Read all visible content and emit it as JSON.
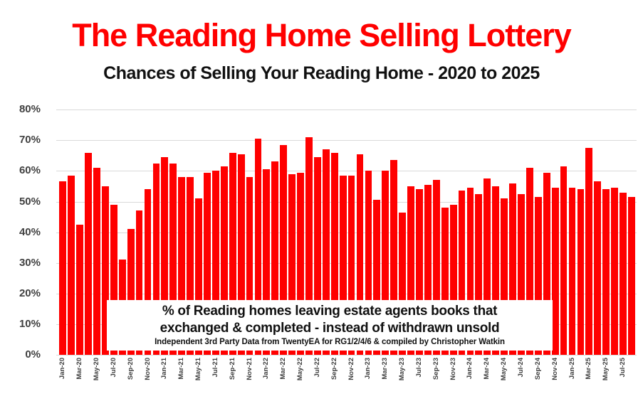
{
  "title": {
    "text": "The Reading Home Selling Lottery",
    "color": "#ff0000"
  },
  "subtitle": {
    "text": "Chances of Selling Your Reading Home - 2020 to 2025"
  },
  "annotation": {
    "line1": "% of Reading homes leaving estate agents books that",
    "line2": "exchanged & completed - instead of withdrawn unsold",
    "line3": "Independent 3rd Party Data from TwentyEA for RG1/2/4/6 & compiled by Christopher Watkin"
  },
  "chart_data": {
    "type": "bar",
    "title": "The Reading Home Selling Lottery",
    "subtitle": "Chances of Selling Your Reading Home - 2020 to 2025",
    "xlabel": "",
    "ylabel": "",
    "ylim": [
      0,
      80
    ],
    "y_ticks": [
      "0%",
      "10%",
      "20%",
      "30%",
      "40%",
      "50%",
      "60%",
      "70%",
      "80%"
    ],
    "x_tick_every": 2,
    "grid": true,
    "bar_color": "#ff0000",
    "gridline_color": "#d9d9d9",
    "tick_label_color": "#404040",
    "categories": [
      "Jan-20",
      "Feb-20",
      "Mar-20",
      "Apr-20",
      "May-20",
      "Jun-20",
      "Jul-20",
      "Aug-20",
      "Sep-20",
      "Oct-20",
      "Nov-20",
      "Dec-20",
      "Jan-21",
      "Feb-21",
      "Mar-21",
      "Apr-21",
      "May-21",
      "Jun-21",
      "Jul-21",
      "Aug-21",
      "Sep-21",
      "Oct-21",
      "Nov-21",
      "Dec-21",
      "Jan-22",
      "Feb-22",
      "Mar-22",
      "Apr-22",
      "May-22",
      "Jun-22",
      "Jul-22",
      "Aug-22",
      "Sep-22",
      "Oct-22",
      "Nov-22",
      "Dec-22",
      "Jan-23",
      "Feb-23",
      "Mar-23",
      "Apr-23",
      "May-23",
      "Jun-23",
      "Jul-23",
      "Aug-23",
      "Sep-23",
      "Oct-23",
      "Nov-23",
      "Dec-23",
      "Jan-24",
      "Feb-24",
      "Mar-24",
      "Apr-24",
      "May-24",
      "Jun-24",
      "Jul-24",
      "Aug-24",
      "Sep-24",
      "Oct-24",
      "Nov-24",
      "Dec-24",
      "Jan-25",
      "Feb-25",
      "Mar-25",
      "Apr-25",
      "May-25",
      "Jun-25",
      "Jul-25",
      "Aug-25"
    ],
    "values": [
      56.5,
      58.5,
      42.5,
      66,
      61,
      55,
      49,
      31,
      41,
      47,
      54,
      62.5,
      64.5,
      62.5,
      58,
      58,
      51,
      59.5,
      60,
      61.5,
      66,
      65.5,
      58,
      70.5,
      60.5,
      63,
      68.5,
      59,
      59.5,
      71,
      64.5,
      67,
      66,
      58.5,
      58.5,
      65.5,
      60,
      50.5,
      60,
      63.5,
      46.5,
      55,
      54,
      55.5,
      57,
      48,
      49,
      53.5,
      54.5,
      52.5,
      57.5,
      55,
      51,
      56,
      52.5,
      61,
      51.5,
      59.5,
      54.5,
      61.5,
      54.5,
      54,
      67.5,
      56.5,
      54,
      54.5,
      53,
      51.5
    ]
  }
}
